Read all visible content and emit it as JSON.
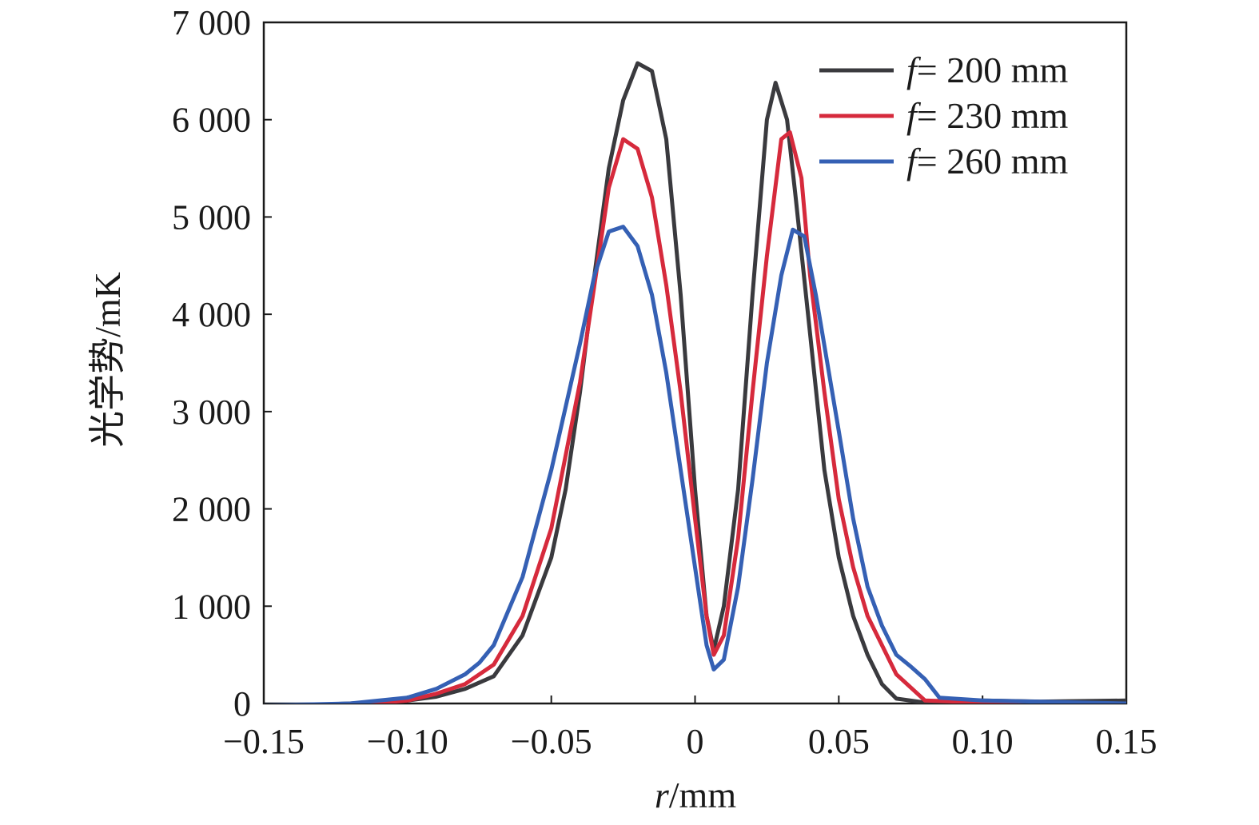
{
  "chart_data": {
    "type": "line",
    "title": "",
    "xlabel_var": "r",
    "xlabel_unit": "/mm",
    "ylabel": "光学势/mK",
    "xlim": [
      -0.15,
      0.15
    ],
    "ylim": [
      0,
      7000
    ],
    "x_ticks": [
      -0.15,
      -0.1,
      -0.05,
      0,
      0.05,
      0.1,
      0.15
    ],
    "x_tick_labels": [
      "−0.15",
      "−0.10",
      "−0.05",
      "0",
      "0.05",
      "0.10",
      "0.15"
    ],
    "y_ticks": [
      0,
      1000,
      2000,
      3000,
      4000,
      5000,
      6000,
      7000
    ],
    "y_tick_labels": [
      "0",
      "1 000",
      "2 000",
      "3 000",
      "4 000",
      "5 000",
      "6 000",
      "7 000"
    ],
    "grid": false,
    "legend_position": "top-right",
    "series": [
      {
        "name_var": "f",
        "name_rest": "= 200 mm",
        "color": "#3a3a3e",
        "x": [
          -0.15,
          -0.12,
          -0.1,
          -0.09,
          -0.08,
          -0.07,
          -0.06,
          -0.05,
          -0.045,
          -0.04,
          -0.035,
          -0.03,
          -0.025,
          -0.02,
          -0.015,
          -0.01,
          -0.005,
          0,
          0.004,
          0.0065,
          0.01,
          0.015,
          0.02,
          0.025,
          0.028,
          0.032,
          0.035,
          0.04,
          0.045,
          0.05,
          0.055,
          0.06,
          0.065,
          0.07,
          0.08,
          0.1,
          0.12,
          0.15
        ],
        "y": [
          -30,
          0,
          30,
          70,
          150,
          280,
          700,
          1500,
          2200,
          3200,
          4400,
          5500,
          6200,
          6580,
          6500,
          5800,
          4200,
          2200,
          900,
          550,
          1000,
          2200,
          4200,
          6000,
          6380,
          6000,
          5200,
          3800,
          2400,
          1500,
          900,
          500,
          200,
          50,
          10,
          30,
          20,
          30
        ]
      },
      {
        "name_var": "f",
        "name_rest": "= 230 mm",
        "color": "#d62a3c",
        "x": [
          -0.15,
          -0.12,
          -0.1,
          -0.09,
          -0.08,
          -0.07,
          -0.06,
          -0.05,
          -0.04,
          -0.035,
          -0.03,
          -0.025,
          -0.02,
          -0.015,
          -0.01,
          -0.005,
          0,
          0.004,
          0.0065,
          0.01,
          0.015,
          0.02,
          0.025,
          0.03,
          0.033,
          0.037,
          0.04,
          0.045,
          0.05,
          0.055,
          0.06,
          0.065,
          0.07,
          0.08,
          0.1,
          0.12,
          0.15
        ],
        "y": [
          -50,
          -20,
          30,
          100,
          200,
          400,
          900,
          1800,
          3300,
          4300,
          5300,
          5800,
          5700,
          5200,
          4300,
          3200,
          1900,
          900,
          500,
          700,
          1700,
          3200,
          4600,
          5800,
          5870,
          5400,
          4400,
          3200,
          2100,
          1400,
          900,
          600,
          300,
          30,
          10,
          -30,
          0
        ]
      },
      {
        "name_var": "f",
        "name_rest": "= 260 mm",
        "color": "#3560b4",
        "x": [
          -0.15,
          -0.12,
          -0.1,
          -0.09,
          -0.08,
          -0.075,
          -0.07,
          -0.06,
          -0.05,
          -0.04,
          -0.035,
          -0.03,
          -0.025,
          -0.02,
          -0.015,
          -0.01,
          -0.005,
          0,
          0.004,
          0.0065,
          0.01,
          0.015,
          0.02,
          0.025,
          0.03,
          0.034,
          0.038,
          0.042,
          0.05,
          0.055,
          0.06,
          0.065,
          0.07,
          0.075,
          0.08,
          0.085,
          0.1,
          0.15
        ],
        "y": [
          -20,
          0,
          60,
          150,
          300,
          420,
          600,
          1300,
          2400,
          3700,
          4400,
          4850,
          4900,
          4700,
          4200,
          3400,
          2400,
          1400,
          600,
          350,
          450,
          1200,
          2300,
          3500,
          4400,
          4870,
          4800,
          4200,
          2800,
          1900,
          1200,
          800,
          500,
          380,
          250,
          60,
          30,
          0
        ]
      }
    ]
  }
}
